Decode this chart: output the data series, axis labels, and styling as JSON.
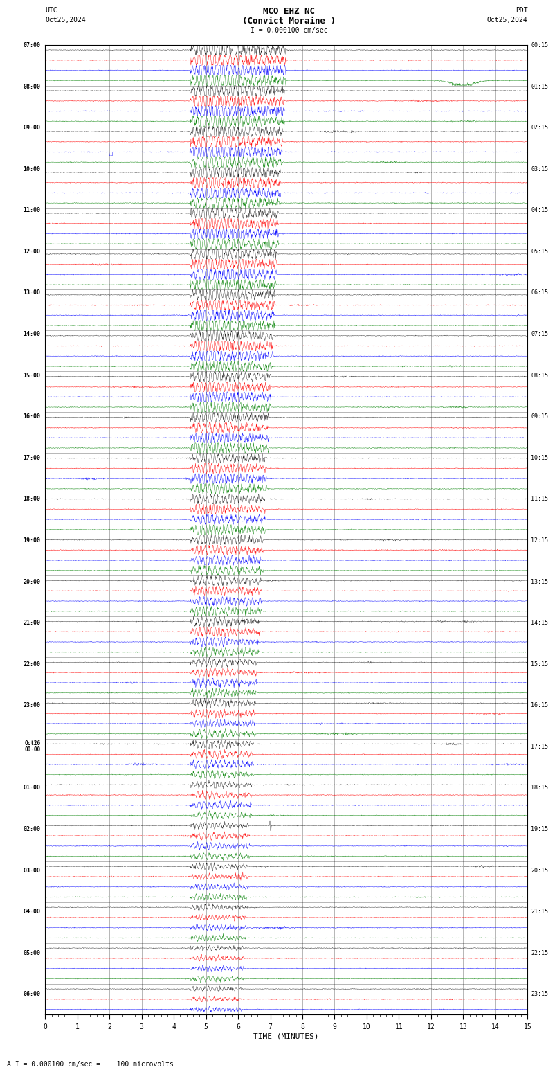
{
  "title_line1": "MCO EHZ NC",
  "title_line2": "(Convict Moraine )",
  "scale_text": "I = 0.000100 cm/sec",
  "left_header": "UTC",
  "left_date": "Oct25,2024",
  "right_header": "PDT",
  "right_date": "Oct25,2024",
  "xlabel": "TIME (MINUTES)",
  "footer_text": "A I = 0.000100 cm/sec =    100 microvolts",
  "left_times": [
    "07:00",
    "",
    "",
    "",
    "08:00",
    "",
    "",
    "",
    "09:00",
    "",
    "",
    "",
    "10:00",
    "",
    "",
    "",
    "11:00",
    "",
    "",
    "",
    "12:00",
    "",
    "",
    "",
    "13:00",
    "",
    "",
    "",
    "14:00",
    "",
    "",
    "",
    "15:00",
    "",
    "",
    "",
    "16:00",
    "",
    "",
    "",
    "17:00",
    "",
    "",
    "",
    "18:00",
    "",
    "",
    "",
    "19:00",
    "",
    "",
    "",
    "20:00",
    "",
    "",
    "",
    "21:00",
    "",
    "",
    "",
    "22:00",
    "",
    "",
    "",
    "23:00",
    "",
    "",
    "",
    "Oct26\n00:00",
    "",
    "",
    "",
    "01:00",
    "",
    "",
    "",
    "02:00",
    "",
    "",
    "",
    "03:00",
    "",
    "",
    "",
    "04:00",
    "",
    "",
    "",
    "05:00",
    "",
    "",
    "",
    "06:00",
    "",
    ""
  ],
  "right_times": [
    "00:15",
    "",
    "",
    "",
    "01:15",
    "",
    "",
    "",
    "02:15",
    "",
    "",
    "",
    "03:15",
    "",
    "",
    "",
    "04:15",
    "",
    "",
    "",
    "05:15",
    "",
    "",
    "",
    "06:15",
    "",
    "",
    "",
    "07:15",
    "",
    "",
    "",
    "08:15",
    "",
    "",
    "",
    "09:15",
    "",
    "",
    "",
    "10:15",
    "",
    "",
    "",
    "11:15",
    "",
    "",
    "",
    "12:15",
    "",
    "",
    "",
    "13:15",
    "",
    "",
    "",
    "14:15",
    "",
    "",
    "",
    "15:15",
    "",
    "",
    "",
    "16:15",
    "",
    "",
    "",
    "17:15",
    "",
    "",
    "",
    "18:15",
    "",
    "",
    "",
    "19:15",
    "",
    "",
    "",
    "20:15",
    "",
    "",
    "",
    "21:15",
    "",
    "",
    "",
    "22:15",
    "",
    "",
    "",
    "23:15",
    "",
    ""
  ],
  "colors": [
    "black",
    "red",
    "blue",
    "green"
  ],
  "bg_color": "white",
  "fig_width": 8.5,
  "fig_height": 15.84,
  "xmin": 0,
  "xmax": 15,
  "xticks": [
    0,
    1,
    2,
    3,
    4,
    5,
    6,
    7,
    8,
    9,
    10,
    11,
    12,
    13,
    14,
    15
  ]
}
